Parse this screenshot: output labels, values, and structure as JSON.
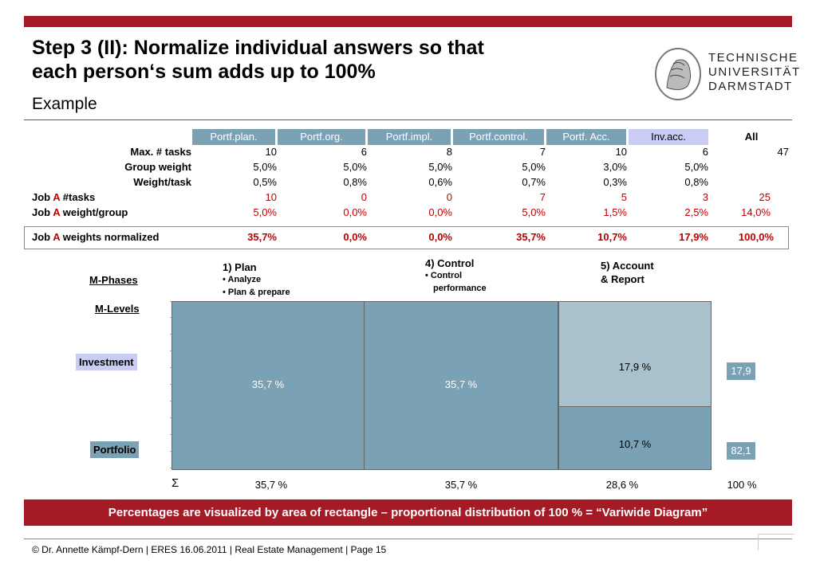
{
  "title": {
    "line1": "Step 3 (II): Normalize individual answers so that",
    "line2": "each person‘s sum adds up to 100%",
    "subtitle": "Example"
  },
  "logo": {
    "line1": "TECHNISCHE",
    "line2": "UNIVERSITÄT",
    "line3": "DARMSTADT"
  },
  "table": {
    "headers": [
      "Portf.plan.",
      "Portf.org.",
      "Portf.impl.",
      "Portf.control.",
      "Portf. Acc.",
      "Inv.acc.",
      "All"
    ],
    "rows": [
      {
        "label": "Max. # tasks",
        "values": [
          "10",
          "6",
          "8",
          "7",
          "10",
          "6",
          "47"
        ]
      },
      {
        "label": "Group weight",
        "values": [
          "5,0%",
          "5,0%",
          "5,0%",
          "5,0%",
          "3,0%",
          "5,0%",
          ""
        ]
      },
      {
        "label": "Weight/task",
        "values": [
          "0,5%",
          "0,8%",
          "0,6%",
          "0,7%",
          "0,3%",
          "0,8%",
          ""
        ]
      },
      {
        "label_pre": "Job ",
        "label_red": "A",
        "label_post": " #tasks",
        "values": [
          "10",
          "0",
          "0",
          "7",
          "5",
          "3",
          "25"
        ]
      },
      {
        "label_pre": "Job ",
        "label_red": "A",
        "label_post": " weight/group",
        "values": [
          "5,0%",
          "0,0%",
          "0,0%",
          "5,0%",
          "1,5%",
          "2,5%",
          "14,0%"
        ]
      }
    ],
    "normalized": {
      "label_pre": "Job ",
      "label_red": "A",
      "label_post": " weights normalized",
      "values": [
        "35,7%",
        "0,0%",
        "0,0%",
        "35,7%",
        "10,7%",
        "17,9%",
        "100,0%"
      ]
    }
  },
  "diagram": {
    "phases_label": "M-Phases",
    "levels_label": "M-Levels",
    "phase1": {
      "title": "1) Plan",
      "bullets": [
        "Analyze",
        "Plan & prepare"
      ]
    },
    "phase4": {
      "title": "4) Control",
      "bullets": [
        "Control",
        "performance"
      ]
    },
    "phase5": {
      "title_line1": "5) Account",
      "title_line2": "& Report"
    },
    "level_investment": "Investment",
    "level_portfolio": "Portfolio",
    "rect_plan": "35,7 %",
    "rect_control": "35,7 %",
    "rect_inv": "17,9 %",
    "rect_port": "10,7 %",
    "side_inv": "17,9",
    "side_port": "82,1",
    "sigma": "Σ",
    "sum_plan": "35,7 %",
    "sum_control": "35,7 %",
    "sum_account": "28,6 %",
    "sum_total": "100 %",
    "colors": {
      "portfolio": "#7ba1b4",
      "investment": "#a9c1cc",
      "header": "#7ba1b4",
      "inv_header": "#c9cdf3",
      "brand": "#a41b26"
    }
  },
  "banner": "Percentages are visualized by area of rectangle – proportional distribution of 100 % = “Variwide Diagram”",
  "footer": "© Dr. Annette Kämpf-Dern | ERES 16.06.2011 | Real Estate Management | Page 15"
}
